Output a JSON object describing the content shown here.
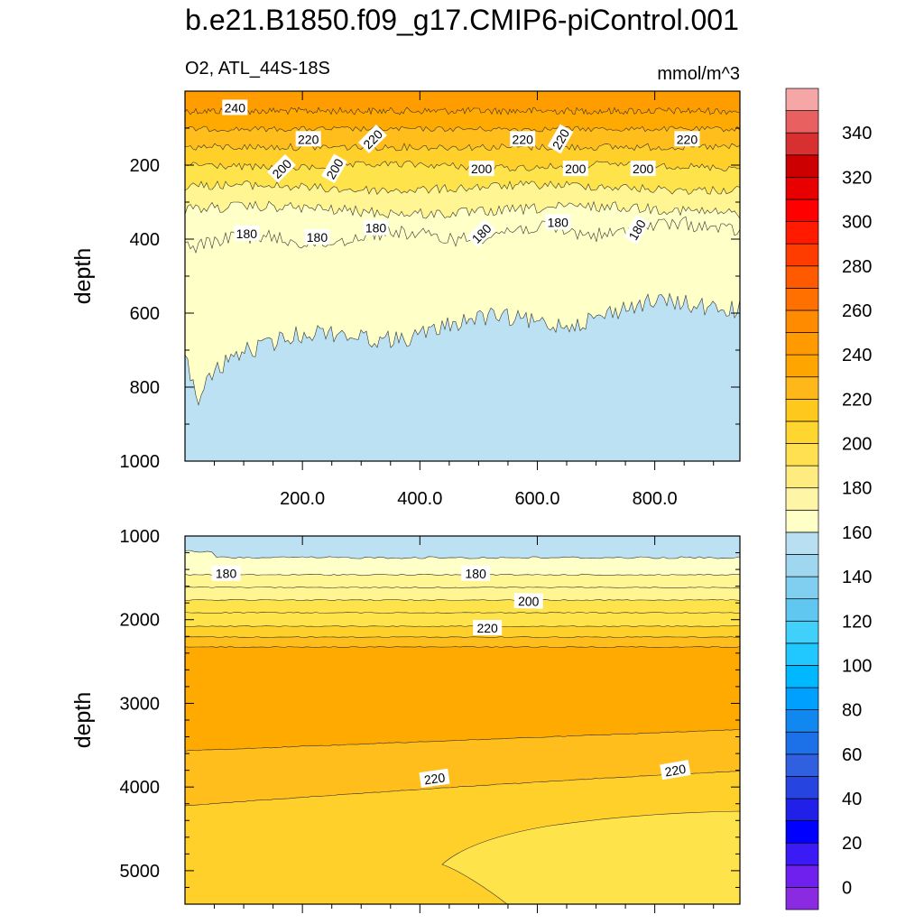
{
  "title": "b.e21.B1850.f09_g17.CMIP6-piControl.001",
  "chart_data": [
    {
      "type": "heatmap",
      "panel": "upper",
      "subtitle_left": "O2, ATL_44S-18S",
      "subtitle_right": "mmol/m^3",
      "xlabel": "",
      "ylabel": "depth",
      "xlim": [
        0,
        945
      ],
      "ylim": [
        1000,
        0
      ],
      "x_ticks": [
        "200.0",
        "400.0",
        "600.0",
        "800.0"
      ],
      "x_tick_values": [
        200,
        400,
        600,
        800
      ],
      "y_ticks": [
        "200",
        "400",
        "600",
        "800",
        "1000"
      ],
      "y_tick_values": [
        200,
        400,
        600,
        800,
        1000
      ],
      "depth_bands": [
        {
          "value_range": [
            240,
            250
          ],
          "upper_depth": 0,
          "lower_depth": 25
        },
        {
          "value_range": [
            230,
            240
          ],
          "upper_depth": 25,
          "lower_depth": 100
        },
        {
          "value_range": [
            220,
            230
          ],
          "upper_depth": 100,
          "lower_depth": 145
        },
        {
          "value_range": [
            210,
            220
          ],
          "upper_depth": 145,
          "lower_depth": 205
        },
        {
          "value_range": [
            200,
            210
          ],
          "upper_depth": 205,
          "lower_depth": 270
        },
        {
          "value_range": [
            190,
            200
          ],
          "upper_depth": 270,
          "lower_depth": 330
        },
        {
          "value_range": [
            180,
            190
          ],
          "upper_depth": 330,
          "lower_depth": 410
        },
        {
          "value_range": [
            170,
            180
          ],
          "upper_depth": 410,
          "lower_depth": 660
        },
        {
          "value_range": [
            160,
            170
          ],
          "upper_depth": 660,
          "lower_depth": 1000
        }
      ],
      "contour_labels": [
        {
          "text": "240",
          "x": 85,
          "depth": 45
        },
        {
          "text": "220",
          "x": 210,
          "depth": 130
        },
        {
          "text": "220",
          "x": 320,
          "depth": 130
        },
        {
          "text": "220",
          "x": 575,
          "depth": 130
        },
        {
          "text": "220",
          "x": 640,
          "depth": 130
        },
        {
          "text": "220",
          "x": 855,
          "depth": 130
        },
        {
          "text": "200",
          "x": 165,
          "depth": 210
        },
        {
          "text": "200",
          "x": 255,
          "depth": 210
        },
        {
          "text": "200",
          "x": 505,
          "depth": 210
        },
        {
          "text": "200",
          "x": 665,
          "depth": 210
        },
        {
          "text": "200",
          "x": 780,
          "depth": 210
        },
        {
          "text": "180",
          "x": 105,
          "depth": 385
        },
        {
          "text": "180",
          "x": 225,
          "depth": 395
        },
        {
          "text": "180",
          "x": 325,
          "depth": 370
        },
        {
          "text": "180",
          "x": 505,
          "depth": 385
        },
        {
          "text": "180",
          "x": 635,
          "depth": 355
        },
        {
          "text": "180",
          "x": 770,
          "depth": 375
        }
      ]
    },
    {
      "type": "heatmap",
      "panel": "lower",
      "xlabel": "",
      "ylabel": "depth",
      "xlim": [
        0,
        945
      ],
      "ylim": [
        5400,
        1000
      ],
      "y_ticks": [
        "1000",
        "2000",
        "3000",
        "4000",
        "5000"
      ],
      "y_tick_values": [
        1000,
        2000,
        3000,
        4000,
        5000
      ],
      "depth_bands": [
        {
          "value_range": [
            160,
            170
          ],
          "upper_depth": 1000,
          "lower_depth": 1250
        },
        {
          "value_range": [
            170,
            180
          ],
          "upper_depth": 1250,
          "lower_depth": 1550
        },
        {
          "value_range": [
            180,
            190
          ],
          "upper_depth": 1550,
          "lower_depth": 1700
        },
        {
          "value_range": [
            190,
            200
          ],
          "upper_depth": 1700,
          "lower_depth": 1850
        },
        {
          "value_range": [
            200,
            210
          ],
          "upper_depth": 1850,
          "lower_depth": 2000
        },
        {
          "value_range": [
            210,
            220
          ],
          "upper_depth": 2000,
          "lower_depth": 2150
        },
        {
          "value_range": [
            220,
            230
          ],
          "upper_depth": 2150,
          "lower_depth": 2350
        },
        {
          "value_range": [
            230,
            240
          ],
          "upper_depth": 2350,
          "lower_depth": 3500
        },
        {
          "value_range": [
            220,
            230
          ],
          "upper_depth": 3500,
          "lower_depth": 4000
        },
        {
          "value_range": [
            210,
            220
          ],
          "upper_depth": 4000,
          "lower_depth": 5400
        },
        {
          "value_range": [
            200,
            210
          ],
          "note": "tongue from x≈440 at depth≈4900 widening eastward, 4300-5400 m"
        }
      ],
      "contour_labels": [
        {
          "text": "180",
          "x": 70,
          "depth": 1450
        },
        {
          "text": "180",
          "x": 495,
          "depth": 1450
        },
        {
          "text": "200",
          "x": 585,
          "depth": 1780
        },
        {
          "text": "220",
          "x": 515,
          "depth": 2100
        },
        {
          "text": "220",
          "x": 425,
          "depth": 3900
        },
        {
          "text": "220",
          "x": 835,
          "depth": 3800
        }
      ]
    }
  ],
  "colorbar": {
    "labels": [
      "340",
      "320",
      "300",
      "280",
      "260",
      "240",
      "220",
      "200",
      "180",
      "160",
      "140",
      "120",
      "100",
      "80",
      "60",
      "40",
      "20",
      "0"
    ],
    "label_values": [
      340,
      320,
      300,
      280,
      260,
      240,
      220,
      200,
      180,
      160,
      140,
      120,
      100,
      80,
      60,
      40,
      20,
      0
    ],
    "range": [
      -10,
      360
    ],
    "step": 10,
    "colors": [
      "#8a2be2",
      "#6f1fee",
      "#3c1af6",
      "#0000ff",
      "#2020e8",
      "#2544e0",
      "#3060e0",
      "#1c70e8",
      "#1088f0",
      "#00a0ff",
      "#00b8ff",
      "#20c8ff",
      "#40d0fa",
      "#60c8f0",
      "#80cef0",
      "#9fd6f0",
      "#b8e0f2",
      "#ffffc8",
      "#fff5a6",
      "#ffec80",
      "#fee050",
      "#ffd530",
      "#ffc81c",
      "#ffb81a",
      "#ffa500",
      "#ff9a00",
      "#ff8c00",
      "#ff7000",
      "#ff5a00",
      "#ff3c00",
      "#ff1a00",
      "#ff0000",
      "#e80000",
      "#cc0000",
      "#d83030",
      "#e86060",
      "#f5a7a7"
    ]
  },
  "colors": {
    "c240": "#ff9d00",
    "c230": "#ffaa00",
    "c220": "#ffbe1c",
    "c210": "#ffd02a",
    "c200": "#ffe34a",
    "c190": "#fff592",
    "c180": "#ffffc8",
    "c170": "#bbe1f2",
    "outline": "#000000"
  }
}
